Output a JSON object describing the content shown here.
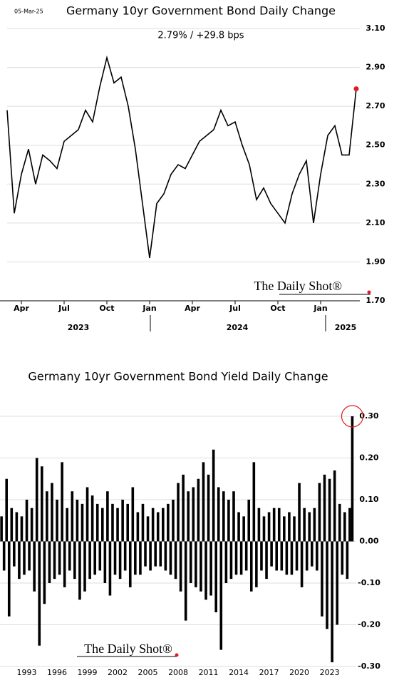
{
  "chart_data": [
    {
      "type": "line",
      "title": "Germany 10yr Government Bond Daily Change",
      "subtitle": "2.79%  /  +29.8 bps",
      "date": "05-Mar-25",
      "watermark": "The Daily Shot®",
      "color": "#000000",
      "last_point_color": "#e31a1c",
      "categories": [
        null,
        null,
        "Apr",
        null,
        null,
        null,
        null,
        null,
        "Jul",
        null,
        null,
        null,
        null,
        null,
        "Oct",
        null,
        null,
        null,
        null,
        null,
        "Jan",
        null,
        null,
        null,
        null,
        null,
        "Apr",
        null,
        null,
        null,
        null,
        null,
        "Jul",
        null,
        null,
        null,
        null,
        null,
        "Oct",
        null,
        null,
        null,
        null,
        null,
        "Jan",
        null,
        null,
        null,
        null,
        null
      ],
      "x_group_labels": [
        "2023",
        "2024",
        "2025"
      ],
      "values": [
        2.68,
        2.15,
        2.35,
        2.48,
        2.3,
        2.45,
        2.42,
        2.38,
        2.52,
        2.55,
        2.58,
        2.68,
        2.62,
        2.8,
        2.95,
        2.82,
        2.85,
        2.7,
        2.48,
        2.2,
        1.92,
        2.2,
        2.25,
        2.35,
        2.4,
        2.38,
        2.45,
        2.52,
        2.55,
        2.58,
        2.68,
        2.6,
        2.62,
        2.5,
        2.4,
        2.22,
        2.28,
        2.2,
        2.15,
        2.1,
        2.25,
        2.35,
        2.42,
        2.1,
        2.35,
        2.55,
        2.6,
        2.45,
        2.45,
        2.79
      ],
      "ylim": [
        1.7,
        3.1
      ],
      "yticks": [
        {
          "value": 1.7,
          "label": "1.70"
        },
        {
          "value": 1.9,
          "label": "1.90"
        },
        {
          "value": 2.1,
          "label": "2.10"
        },
        {
          "value": 2.3,
          "label": "2.30"
        },
        {
          "value": 2.5,
          "label": "2.50"
        },
        {
          "value": 2.7,
          "label": "2.70"
        },
        {
          "value": 2.9,
          "label": "2.90"
        },
        {
          "value": 3.1,
          "label": "3.10"
        }
      ],
      "grid": true
    },
    {
      "type": "bar",
      "title": "Germany 10yr Government Bond Yield Daily Change",
      "watermark": "The Daily Shot®",
      "color": "#000000",
      "highlight_color": "#e31a1c",
      "x": [
        1990.5,
        1990.75,
        1991,
        1991.25,
        1991.5,
        1991.75,
        1992,
        1992.25,
        1992.5,
        1992.75,
        1993,
        1993.25,
        1993.5,
        1993.75,
        1994,
        1994.25,
        1994.5,
        1994.75,
        1995,
        1995.25,
        1995.5,
        1995.75,
        1996,
        1996.25,
        1996.5,
        1996.75,
        1997,
        1997.25,
        1997.5,
        1997.75,
        1998,
        1998.25,
        1998.5,
        1998.75,
        1999,
        1999.25,
        1999.5,
        1999.75,
        2000,
        2000.25,
        2000.5,
        2000.75,
        2001,
        2001.25,
        2001.5,
        2001.75,
        2002,
        2002.25,
        2002.5,
        2002.75,
        2003,
        2003.25,
        2003.5,
        2003.75,
        2004,
        2004.25,
        2004.5,
        2004.75,
        2005,
        2005.25,
        2005.5,
        2005.75,
        2006,
        2006.25,
        2006.5,
        2006.75,
        2007,
        2007.25,
        2007.5,
        2007.75,
        2008,
        2008.25,
        2008.5,
        2008.75,
        2009,
        2009.25,
        2009.5,
        2009.75,
        2010,
        2010.25,
        2010.5,
        2010.75,
        2011,
        2011.25,
        2011.5,
        2011.75,
        2012,
        2012.25,
        2012.5,
        2012.75,
        2013,
        2013.25,
        2013.5,
        2013.75,
        2014,
        2014.25,
        2014.5,
        2014.75,
        2015,
        2015.25,
        2015.5,
        2015.75,
        2016,
        2016.25,
        2016.5,
        2016.75,
        2017,
        2017.25,
        2017.5,
        2017.75,
        2018,
        2018.25,
        2018.5,
        2018.75,
        2019,
        2019.25,
        2019.5,
        2019.75,
        2020,
        2020.25,
        2020.5,
        2020.75,
        2021,
        2021.25,
        2021.5,
        2021.75,
        2022,
        2022.25,
        2022.5,
        2022.75,
        2023,
        2023.25,
        2023.5,
        2023.75,
        2024,
        2024.25,
        2024.5,
        2024.75,
        2025,
        2025.25
      ],
      "values": [
        0.06,
        -0.07,
        0.15,
        -0.18,
        0.08,
        -0.06,
        0.07,
        -0.09,
        0.06,
        -0.08,
        0.1,
        -0.07,
        0.08,
        -0.12,
        0.2,
        -0.25,
        0.18,
        -0.15,
        0.12,
        -0.1,
        0.14,
        -0.09,
        0.1,
        -0.08,
        0.19,
        -0.11,
        0.08,
        -0.07,
        0.12,
        -0.09,
        0.1,
        -0.14,
        0.09,
        -0.12,
        0.13,
        -0.09,
        0.11,
        -0.08,
        0.09,
        -0.07,
        0.08,
        -0.1,
        0.12,
        -0.13,
        0.09,
        -0.08,
        0.08,
        -0.09,
        0.1,
        -0.07,
        0.09,
        -0.11,
        0.13,
        -0.08,
        0.07,
        -0.08,
        0.09,
        -0.06,
        0.06,
        -0.07,
        0.08,
        -0.06,
        0.07,
        -0.06,
        0.08,
        -0.07,
        0.09,
        -0.08,
        0.1,
        -0.09,
        0.14,
        -0.12,
        0.16,
        -0.19,
        0.12,
        -0.1,
        0.13,
        -0.11,
        0.15,
        -0.12,
        0.19,
        -0.14,
        0.16,
        -0.13,
        0.22,
        -0.17,
        0.13,
        -0.26,
        0.12,
        -0.1,
        0.1,
        -0.09,
        0.12,
        -0.08,
        0.07,
        -0.08,
        0.06,
        -0.07,
        0.1,
        -0.12,
        0.19,
        -0.11,
        0.08,
        -0.07,
        0.06,
        -0.09,
        0.07,
        -0.06,
        0.08,
        -0.07,
        0.08,
        -0.07,
        0.06,
        -0.08,
        0.07,
        -0.08,
        0.06,
        -0.07,
        0.14,
        -0.11,
        0.08,
        -0.07,
        0.07,
        -0.06,
        0.08,
        -0.07,
        0.14,
        -0.18,
        0.16,
        -0.21,
        0.15,
        -0.29,
        0.17,
        -0.2,
        0.09,
        -0.08,
        0.07,
        -0.09,
        0.08,
        0.3
      ],
      "xlim": [
        1990.35,
        2025.5
      ],
      "xticks": [
        1993,
        1996,
        1999,
        2002,
        2005,
        2008,
        2011,
        2014,
        2017,
        2020,
        2023
      ],
      "ylim": [
        -0.3,
        0.3
      ],
      "yticks": [
        {
          "value": -0.3,
          "label": "-0.30"
        },
        {
          "value": -0.2,
          "label": "-0.20"
        },
        {
          "value": -0.1,
          "label": "-0.10"
        },
        {
          "value": 0,
          "label": "0.00"
        },
        {
          "value": 0.1,
          "label": "0.10"
        },
        {
          "value": 0.2,
          "label": "0.20"
        },
        {
          "value": 0.3,
          "label": "0.30"
        }
      ],
      "grid": true
    }
  ]
}
